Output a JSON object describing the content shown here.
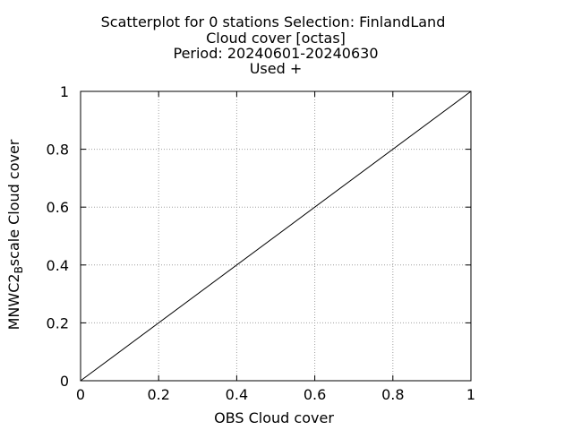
{
  "chart_data": {
    "type": "scatter",
    "title_lines": [
      "Scatterplot for    0 stations Selection: FinlandLand",
      "Cloud cover [octas]",
      "Period: 20240601-20240630",
      "Used  +"
    ],
    "xlabel": "OBS Cloud cover",
    "ylabel_main": "MNWC2",
    "ylabel_subscript": "B",
    "ylabel_rest": "scale Cloud cover",
    "xlim": [
      0,
      1
    ],
    "ylim": [
      0,
      1
    ],
    "xticks": [
      0,
      0.2,
      0.4,
      0.6,
      0.8,
      1
    ],
    "yticks": [
      0,
      0.2,
      0.4,
      0.6,
      0.8,
      1
    ],
    "xtick_labels": [
      "0",
      "0.2",
      "0.4",
      "0.6",
      "0.8",
      "1"
    ],
    "ytick_labels": [
      "0",
      "0.2",
      "0.4",
      "0.6",
      "0.8",
      "1"
    ],
    "grid": true,
    "reference_line": {
      "x": [
        0,
        1
      ],
      "y": [
        0,
        1
      ]
    },
    "series": [],
    "colors": {
      "axis": "#000000",
      "grid": "#a0a0a0",
      "reference_line": "#000000"
    }
  }
}
